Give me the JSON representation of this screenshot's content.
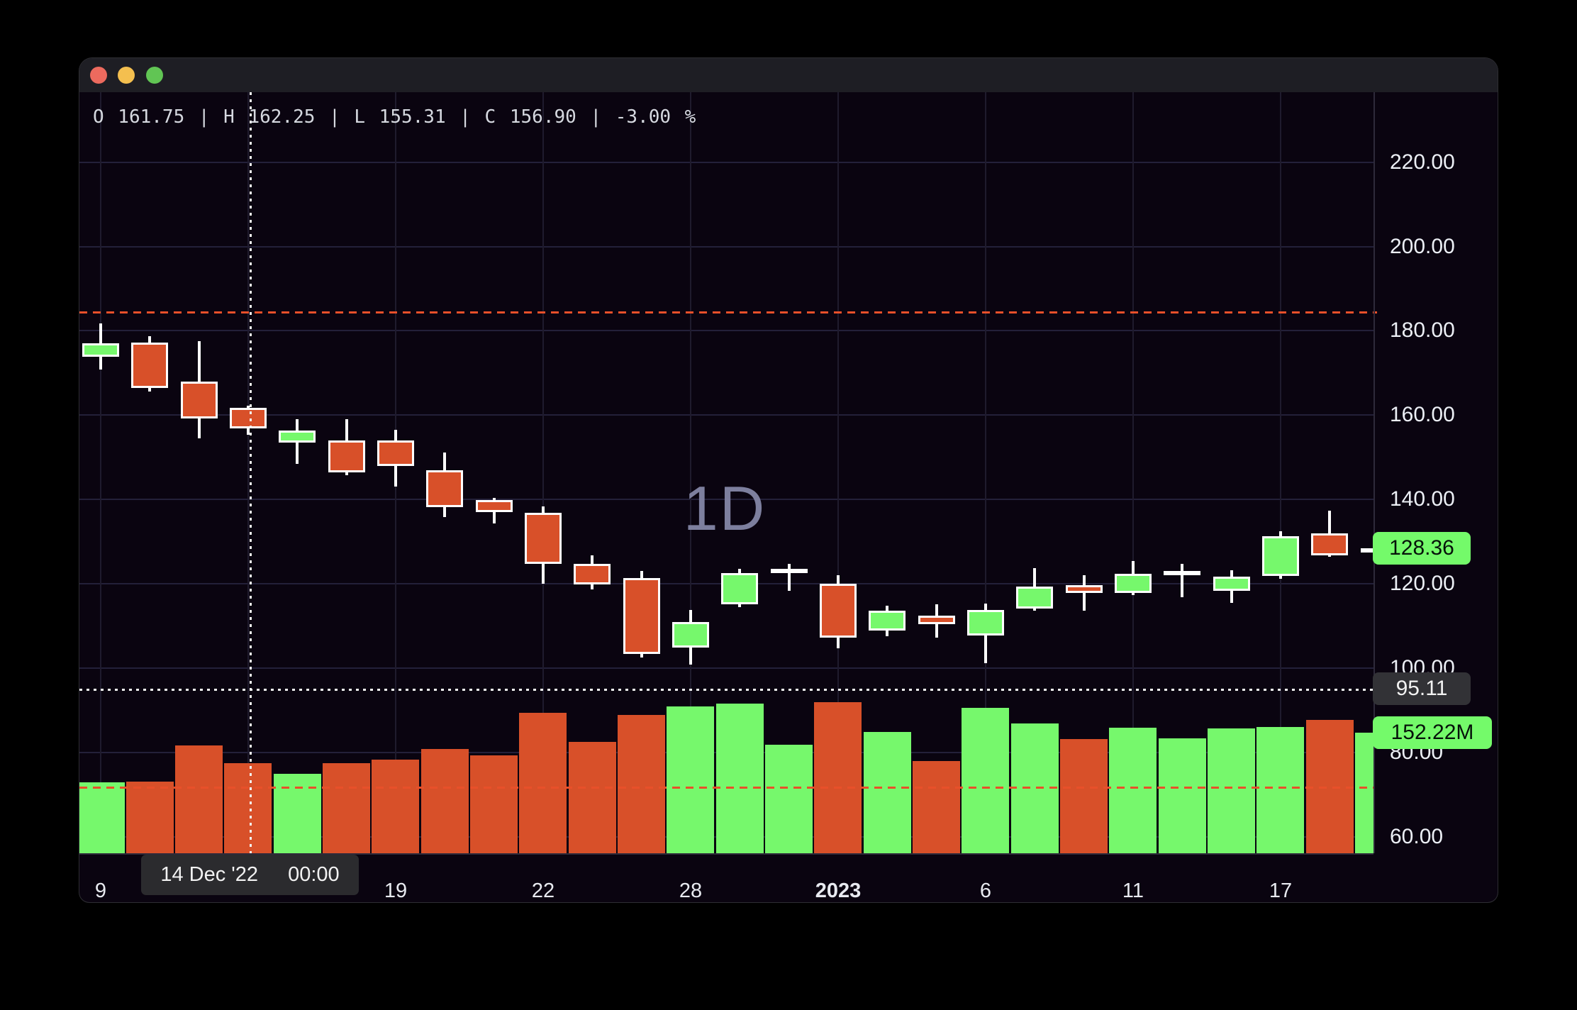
{
  "window": {
    "traffic_lights": [
      {
        "name": "close",
        "color": "#ec6a5e"
      },
      {
        "name": "minimize",
        "color": "#f4bf4f"
      },
      {
        "name": "zoom",
        "color": "#61c554"
      }
    ]
  },
  "legend": {
    "ohlc_text": "O 161.75 | H 162.25 | L 155.31 | C 156.90 | -3.00 %"
  },
  "watermark": {
    "text": "1D"
  },
  "crosshair": {
    "date": "14 Dec '22",
    "time": "00:00",
    "price_label": "95.11",
    "candle_index": 3
  },
  "badges": {
    "last_price": "128.36",
    "crosshair_price": "95.11",
    "last_volume": "152.22M"
  },
  "chart_data": {
    "type": "candlestick_with_volume",
    "title": "",
    "timeframe": "1D",
    "price_axis": {
      "ticks": [
        "220.00",
        "200.00",
        "180.00",
        "160.00",
        "140.00",
        "120.00",
        "100.00",
        "80.00",
        "60.00"
      ],
      "tick_values": [
        220,
        200,
        180,
        160,
        140,
        120,
        100,
        80,
        60
      ],
      "visible_range": [
        56.1,
        236.6
      ],
      "grid": true
    },
    "time_axis": {
      "ticks": [
        {
          "index": 0,
          "label": "9",
          "bold": false
        },
        {
          "index": 3,
          "label": "",
          "bold": false
        },
        {
          "index": 6,
          "label": "19",
          "bold": false
        },
        {
          "index": 9,
          "label": "22",
          "bold": false
        },
        {
          "index": 12,
          "label": "28",
          "bold": false
        },
        {
          "index": 15,
          "label": "2023",
          "bold": true
        },
        {
          "index": 18,
          "label": "6",
          "bold": false
        },
        {
          "index": 21,
          "label": "11",
          "bold": false
        },
        {
          "index": 24,
          "label": "17",
          "bold": false
        }
      ]
    },
    "reference_lines": {
      "price_dashed_orange": 184.6,
      "volume_dashed_orange_millions": 84.2,
      "crosshair_price": 95.11,
      "last_price": 128.36
    },
    "candles": [
      {
        "date": "Dec 9",
        "o": 173.9,
        "h": 181.8,
        "l": 170.8,
        "c": 177.1,
        "vol_m": 89.5
      },
      {
        "date": "Dec 12",
        "o": 177.2,
        "h": 178.7,
        "l": 165.6,
        "c": 166.5,
        "vol_m": 90.4
      },
      {
        "date": "Dec 13",
        "o": 168.0,
        "h": 177.5,
        "l": 154.5,
        "c": 159.3,
        "vol_m": 136.1
      },
      {
        "date": "Dec 14",
        "o": 161.75,
        "h": 162.25,
        "l": 155.31,
        "c": 156.9,
        "vol_m": 113.7
      },
      {
        "date": "Dec 15",
        "o": 153.5,
        "h": 159.0,
        "l": 148.5,
        "c": 156.3,
        "vol_m": 100.3
      },
      {
        "date": "Dec 16",
        "o": 154.0,
        "h": 159.0,
        "l": 145.7,
        "c": 146.4,
        "vol_m": 113.7
      },
      {
        "date": "Dec 19",
        "o": 154.0,
        "h": 156.6,
        "l": 143.0,
        "c": 147.9,
        "vol_m": 118.2
      },
      {
        "date": "Dec 20",
        "o": 147.0,
        "h": 151.2,
        "l": 135.8,
        "c": 138.2,
        "vol_m": 131.6
      },
      {
        "date": "Dec 21",
        "o": 139.8,
        "h": 140.4,
        "l": 134.3,
        "c": 137.0,
        "vol_m": 123.6
      },
      {
        "date": "Dec 22",
        "o": 136.8,
        "h": 138.4,
        "l": 120.0,
        "c": 124.8,
        "vol_m": 177.3
      },
      {
        "date": "Dec 23",
        "o": 124.8,
        "h": 126.8,
        "l": 118.6,
        "c": 119.9,
        "vol_m": 140.6
      },
      {
        "date": "Dec 27",
        "o": 121.4,
        "h": 123.0,
        "l": 102.5,
        "c": 103.4,
        "vol_m": 174.6
      },
      {
        "date": "Dec 28",
        "o": 104.8,
        "h": 113.8,
        "l": 100.8,
        "c": 111.0,
        "vol_m": 185.3
      },
      {
        "date": "Dec 29",
        "o": 115.2,
        "h": 123.6,
        "l": 114.5,
        "c": 122.6,
        "vol_m": 188.9
      },
      {
        "date": "Dec 30",
        "o": 122.7,
        "h": 124.7,
        "l": 118.4,
        "c": 123.5,
        "vol_m": 137.0
      },
      {
        "date": "Jan 3",
        "o": 120.0,
        "h": 122.0,
        "l": 104.7,
        "c": 107.2,
        "vol_m": 190.7
      },
      {
        "date": "Jan 4",
        "o": 109.0,
        "h": 114.8,
        "l": 107.5,
        "c": 113.6,
        "vol_m": 153.1
      },
      {
        "date": "Jan 5",
        "o": 112.4,
        "h": 115.2,
        "l": 107.3,
        "c": 110.5,
        "vol_m": 116.4
      },
      {
        "date": "Jan 6",
        "o": 107.7,
        "h": 115.3,
        "l": 101.2,
        "c": 113.8,
        "vol_m": 183.6
      },
      {
        "date": "Jan 9",
        "o": 114.2,
        "h": 123.7,
        "l": 113.6,
        "c": 119.3,
        "vol_m": 163.9
      },
      {
        "date": "Jan 10",
        "o": 119.7,
        "h": 122.1,
        "l": 113.7,
        "c": 117.8,
        "vol_m": 144.2
      },
      {
        "date": "Jan 11",
        "o": 117.9,
        "h": 125.4,
        "l": 117.3,
        "c": 122.3,
        "vol_m": 158.5
      },
      {
        "date": "Jan 12",
        "o": 122.8,
        "h": 124.7,
        "l": 116.9,
        "c": 123.0,
        "vol_m": 145.1
      },
      {
        "date": "Jan 13",
        "o": 118.4,
        "h": 123.2,
        "l": 115.5,
        "c": 121.7,
        "vol_m": 157.6
      },
      {
        "date": "Jan 17",
        "o": 121.9,
        "h": 132.4,
        "l": 121.2,
        "c": 131.3,
        "vol_m": 159.4
      },
      {
        "date": "Jan 18",
        "o": 132.0,
        "h": 137.4,
        "l": 126.4,
        "c": 126.7,
        "vol_m": 168.3
      },
      {
        "date": "Jan 19",
        "o": 127.8,
        "h": 128.6,
        "l": 127.3,
        "c": 128.36,
        "vol_m": 152.22
      }
    ],
    "colors": {
      "up": "#76f86c",
      "down": "#d85029",
      "candle_border": "#ffffff",
      "background": "#0a0410",
      "grid": "#232039",
      "watermark": "#8486a6",
      "dashed_line": "#e8502a",
      "crosshair": "#f2f2f2",
      "badge_green": "#74fa6a",
      "badge_gray": "#323236"
    }
  }
}
